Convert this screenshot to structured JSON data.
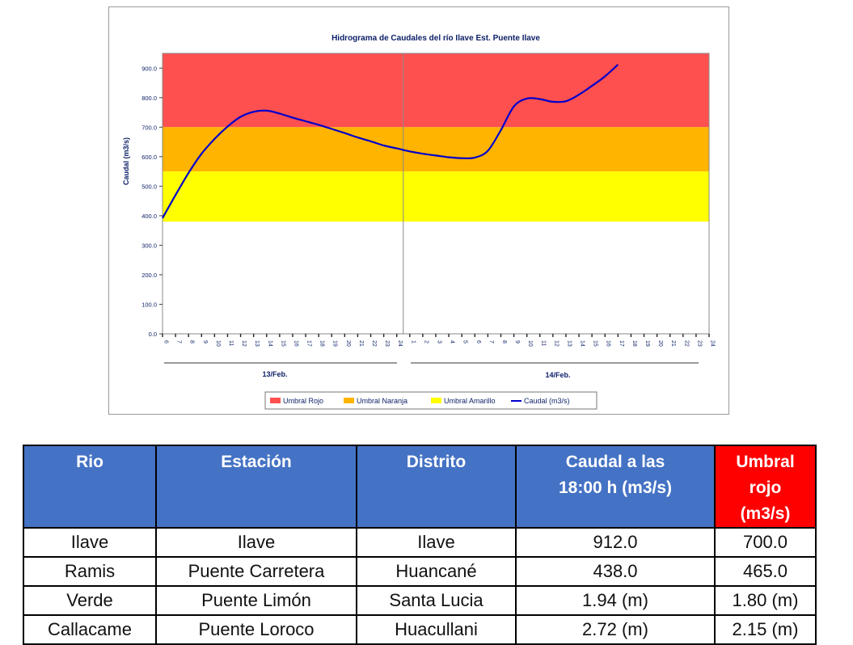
{
  "chart_data": {
    "type": "line",
    "title": "Hidrograma de Caudales  del río Ilave Est. Puente  Ilave",
    "ylabel": "Caudal (m3/s)",
    "ylim": [
      0,
      950
    ],
    "yticks": [
      "0.0",
      "100.0",
      "200.0",
      "300.0",
      "400.0",
      "500.0",
      "600.0",
      "700.0",
      "800.0",
      "900.0"
    ],
    "xticks": [
      "6",
      "7",
      "8",
      "9",
      "10",
      "11",
      "12",
      "13",
      "14",
      "15",
      "16",
      "17",
      "18",
      "19",
      "20",
      "21",
      "22",
      "23",
      "24",
      "1",
      "2",
      "3",
      "4",
      "5",
      "6",
      "7",
      "8",
      "9",
      "10",
      "11",
      "12",
      "13",
      "14",
      "15",
      "16",
      "17",
      "18",
      "19",
      "20",
      "21",
      "22",
      "23",
      "24"
    ],
    "day_labels": [
      "13/Feb.",
      "14/Feb."
    ],
    "bands": [
      {
        "name": "Umbral Rojo",
        "from": 700,
        "to": 950,
        "color": "#ff5050"
      },
      {
        "name": "Umbral Naranja",
        "from": 550,
        "to": 700,
        "color": "#ffb400"
      },
      {
        "name": "Umbral Amarillo",
        "from": 380,
        "to": 550,
        "color": "#ffff00"
      }
    ],
    "series": [
      {
        "name": "Caudal (m3/s)",
        "color": "#0000cc",
        "points": [
          [
            0,
            392
          ],
          [
            1,
            470
          ],
          [
            2,
            545
          ],
          [
            3,
            610
          ],
          [
            4,
            660
          ],
          [
            5,
            702
          ],
          [
            6,
            735
          ],
          [
            7,
            752
          ],
          [
            8,
            756
          ],
          [
            9,
            746
          ],
          [
            10,
            732
          ],
          [
            11,
            720
          ],
          [
            12,
            708
          ],
          [
            13,
            694
          ],
          [
            14,
            680
          ],
          [
            15,
            665
          ],
          [
            16,
            652
          ],
          [
            17,
            638
          ],
          [
            18,
            628
          ],
          [
            19,
            618
          ],
          [
            20,
            610
          ],
          [
            21,
            604
          ],
          [
            22,
            598
          ],
          [
            23,
            595
          ],
          [
            24,
            597
          ],
          [
            25,
            620
          ],
          [
            26,
            690
          ],
          [
            27,
            770
          ],
          [
            28,
            797
          ],
          [
            29,
            795
          ],
          [
            30,
            786
          ],
          [
            31,
            788
          ],
          [
            32,
            810
          ],
          [
            33,
            840
          ],
          [
            34,
            872
          ],
          [
            35,
            912
          ]
        ]
      }
    ],
    "legend": [
      "Umbral Rojo",
      "Umbral Naranja",
      "Umbral Amarillo",
      "Caudal (m3/s)"
    ],
    "legend_position": "bottom",
    "grid": false
  },
  "table": {
    "headers": [
      {
        "line1": "Rio",
        "line2": ""
      },
      {
        "line1": "Estación",
        "line2": ""
      },
      {
        "line1": "Distrito",
        "line2": ""
      },
      {
        "line1": "Caudal a las",
        "line2": "18:00 h (m3/s)"
      },
      {
        "line1": "Umbral rojo",
        "line2": "(m3/s)"
      }
    ],
    "rows": [
      [
        "Ilave",
        "Ilave",
        "Ilave",
        "912.0",
        "700.0"
      ],
      [
        "Ramis",
        "Puente Carretera",
        "Huancané",
        "438.0",
        "465.0"
      ],
      [
        "Verde",
        "Puente Limón",
        "Santa Lucia",
        "1.94 (m)",
        "1.80 (m)"
      ],
      [
        "Callacame",
        "Puente Loroco",
        "Huacullani",
        "2.72 (m)",
        "2.15 (m)"
      ]
    ]
  }
}
